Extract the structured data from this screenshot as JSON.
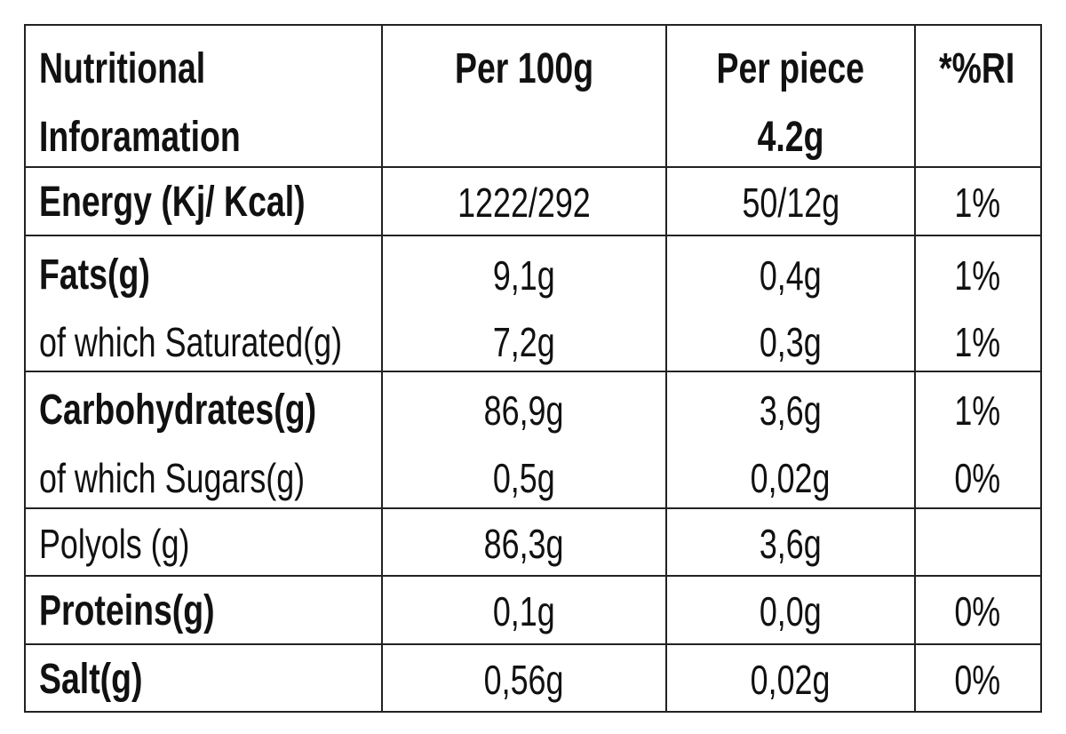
{
  "table": {
    "header": [
      [
        "Nutritional",
        "Inforamation"
      ],
      [
        "Per 100g"
      ],
      [
        "Per piece",
        "4.2g"
      ],
      [
        "*%RI"
      ]
    ],
    "rows": [
      [
        "Energy (Kj/ Kcal)",
        "1222/292",
        "50/12g",
        "1%"
      ],
      [
        "Fats(g)",
        "9,1g",
        "0,4g",
        "1%"
      ],
      [
        "of which Saturated(g)",
        "7,2g",
        "0,3g",
        "1%"
      ],
      [
        "Carbohydrates(g)",
        "86,9g",
        "3,6g",
        "1%"
      ],
      [
        "of which Sugars(g)",
        "0,5g",
        "0,02g",
        "0%"
      ],
      [
        "Polyols (g)",
        "86,3g",
        "3,6g"
      ],
      [
        "Proteins(g)",
        "0,1g",
        "0,0g",
        "0%"
      ],
      [
        "Salt(g)",
        "0,56g",
        "0,02g",
        "0%"
      ]
    ]
  }
}
